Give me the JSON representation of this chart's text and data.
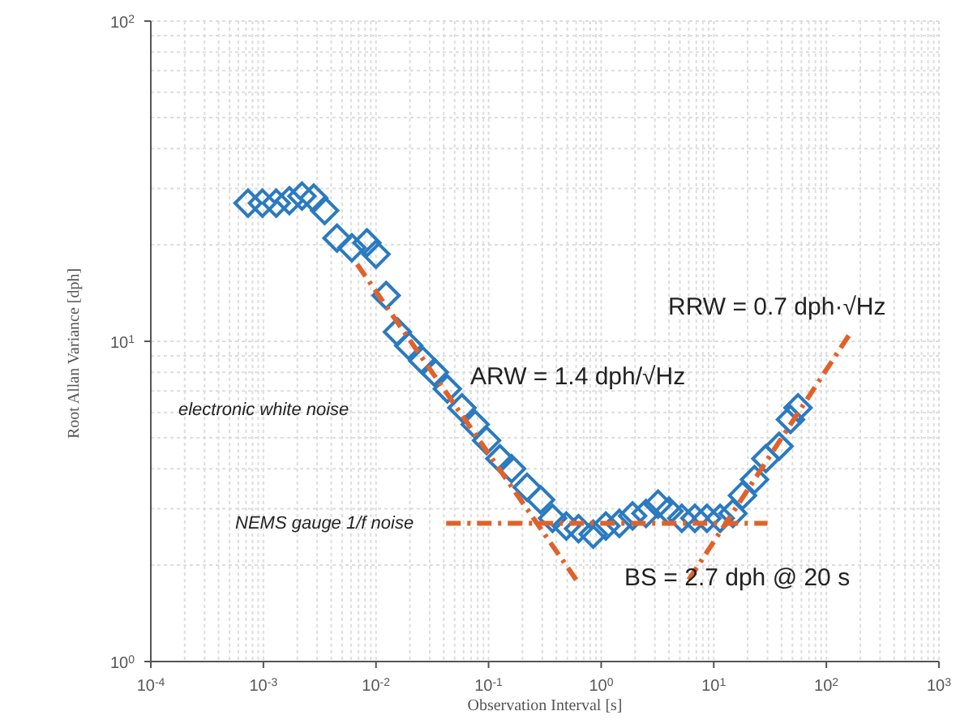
{
  "chart_data": {
    "type": "scatter",
    "xlabel": "Observation Interval [s]",
    "ylabel": "Root Allan Variance [dph]",
    "log": "xy",
    "grid": true,
    "xlim": [
      0.0001,
      1000
    ],
    "ylim": [
      1,
      100
    ],
    "xticks": [
      {
        "value": 0.0001,
        "label": "10$^{-4}$"
      },
      {
        "value": 0.001,
        "label": "10$^{-3}$"
      },
      {
        "value": 0.01,
        "label": "10$^{-2}$"
      },
      {
        "value": 0.1,
        "label": "10$^{-1}$"
      },
      {
        "value": 1,
        "label": "10$^{0}$"
      },
      {
        "value": 10,
        "label": "10$^{1}$"
      },
      {
        "value": 100,
        "label": "10$^{2}$"
      },
      {
        "value": 1000,
        "label": "10$^{3}$"
      }
    ],
    "yticks": [
      {
        "value": 1,
        "label": "10$^{0}$"
      },
      {
        "value": 10,
        "label": "10$^{1}$"
      },
      {
        "value": 100,
        "label": "10$^{2}$"
      }
    ],
    "annotations": [
      "electronic white noise",
      "NEMS gauge 1/f noise",
      "ARW = 1.4 dph/√Hz",
      "RRW = 0.7 dph·√Hz",
      "BS = 2.7 dph @ 20 s"
    ],
    "series": [
      {
        "marker": "diamond",
        "color": "#2a7ac0",
        "x": [
          0.00073,
          0.00098,
          0.0013,
          0.0017,
          0.0022,
          0.0028,
          0.0035,
          0.0045,
          0.0061,
          0.0083,
          0.01,
          0.0123,
          0.0155,
          0.0195,
          0.026,
          0.033,
          0.043,
          0.058,
          0.076,
          0.096,
          0.126,
          0.16,
          0.22,
          0.29,
          0.37,
          0.49,
          0.63,
          0.85,
          1.1,
          1.45,
          1.9,
          2.5,
          3.2,
          4,
          5.2,
          6.8,
          8.7,
          11.4,
          14.8,
          18,
          23,
          29,
          38,
          48,
          56
        ],
        "values": [
          27,
          27,
          27,
          27.5,
          28.4,
          28,
          25.6,
          21,
          19.6,
          20.3,
          18.7,
          13.9,
          10.7,
          9.7,
          8.7,
          8,
          7.1,
          6.2,
          5.5,
          4.9,
          4.3,
          4,
          3.5,
          3.2,
          2.8,
          2.65,
          2.6,
          2.5,
          2.65,
          2.7,
          2.85,
          2.9,
          3.1,
          2.95,
          2.8,
          2.8,
          2.8,
          2.8,
          2.9,
          3.3,
          3.7,
          4.3,
          4.7,
          5.7,
          6.2
        ]
      },
      {
        "type": "line",
        "marker": "none",
        "line_style": "dashed",
        "color": "#e0622a",
        "x": [
          0.0068,
          0.6
        ],
        "values": [
          17.4,
          1.8
        ]
      },
      {
        "type": "line",
        "marker": "none",
        "line_style": "dashed",
        "color": "#e0622a",
        "x": [
          0.042,
          30
        ],
        "values": [
          2.7,
          2.7
        ]
      },
      {
        "type": "line",
        "marker": "none",
        "line_style": "dashed",
        "color": "#e0622a",
        "x": [
          6,
          166
        ],
        "values": [
          1.8,
          10.7
        ]
      }
    ]
  }
}
